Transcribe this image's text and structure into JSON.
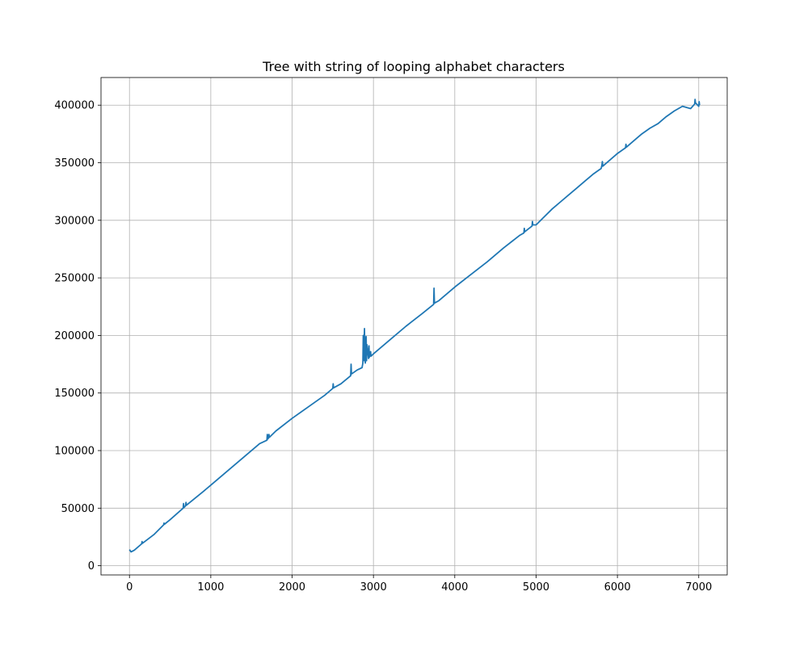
{
  "chart_data": {
    "type": "line",
    "title": "Tree with string of looping alphabet characters",
    "xlabel": "",
    "ylabel": "",
    "xlim": [
      -350,
      7350
    ],
    "ylim": [
      -8000,
      424000
    ],
    "x_ticks": [
      0,
      1000,
      2000,
      3000,
      4000,
      5000,
      6000,
      7000
    ],
    "y_ticks": [
      0,
      50000,
      100000,
      150000,
      200000,
      250000,
      300000,
      350000,
      400000
    ],
    "grid": true,
    "legend": "none",
    "series": [
      {
        "color": "#1f77b4",
        "x": [
          0,
          20,
          60,
          150,
          155,
          160,
          300,
          420,
          425,
          430,
          500,
          660,
          665,
          670,
          690,
          695,
          700,
          900,
          1000,
          1200,
          1400,
          1600,
          1690,
          1695,
          1700,
          1710,
          1715,
          1720,
          1800,
          2000,
          2200,
          2400,
          2500,
          2505,
          2510,
          2600,
          2720,
          2725,
          2730,
          2800,
          2860,
          2870,
          2875,
          2880,
          2890,
          2895,
          2900,
          2910,
          2915,
          2920,
          2940,
          2945,
          2950,
          2960,
          2965,
          2970,
          3000,
          3200,
          3400,
          3600,
          3740,
          3745,
          3750,
          3760,
          3800,
          4000,
          4200,
          4400,
          4600,
          4800,
          4850,
          4855,
          4860,
          4950,
          4955,
          4960,
          5000,
          5100,
          5200,
          5300,
          5400,
          5500,
          5600,
          5700,
          5800,
          5810,
          5815,
          5820,
          6000,
          6100,
          6105,
          6110,
          6200,
          6300,
          6400,
          6500,
          6600,
          6700,
          6800,
          6900,
          6950,
          6955,
          6960,
          7000,
          7005,
          7010
        ],
        "y": [
          14000,
          12000,
          13500,
          19000,
          21000,
          19500,
          27000,
          35500,
          37000,
          36000,
          40000,
          50000,
          54000,
          50500,
          52000,
          55000,
          52500,
          64000,
          70000,
          82000,
          94000,
          106000,
          109000,
          114000,
          110000,
          111000,
          114000,
          111500,
          117000,
          128000,
          138000,
          148000,
          154000,
          158000,
          154500,
          158000,
          165000,
          175000,
          166500,
          170000,
          172000,
          176000,
          200000,
          178000,
          206000,
          180000,
          176000,
          199000,
          178000,
          192000,
          180000,
          191000,
          181000,
          183000,
          186000,
          182000,
          184000,
          196000,
          208000,
          219000,
          227000,
          241000,
          228000,
          228500,
          230000,
          242000,
          253000,
          264000,
          276000,
          287000,
          289000,
          293000,
          290000,
          295000,
          299000,
          296000,
          296000,
          303000,
          310000,
          316000,
          322000,
          328000,
          334000,
          340000,
          345000,
          348000,
          351000,
          347000,
          358000,
          363000,
          366000,
          363500,
          369000,
          375000,
          380000,
          384000,
          390000,
          395000,
          399000,
          397000,
          401000,
          405000,
          402000,
          399000,
          403000,
          400000
        ]
      }
    ]
  }
}
